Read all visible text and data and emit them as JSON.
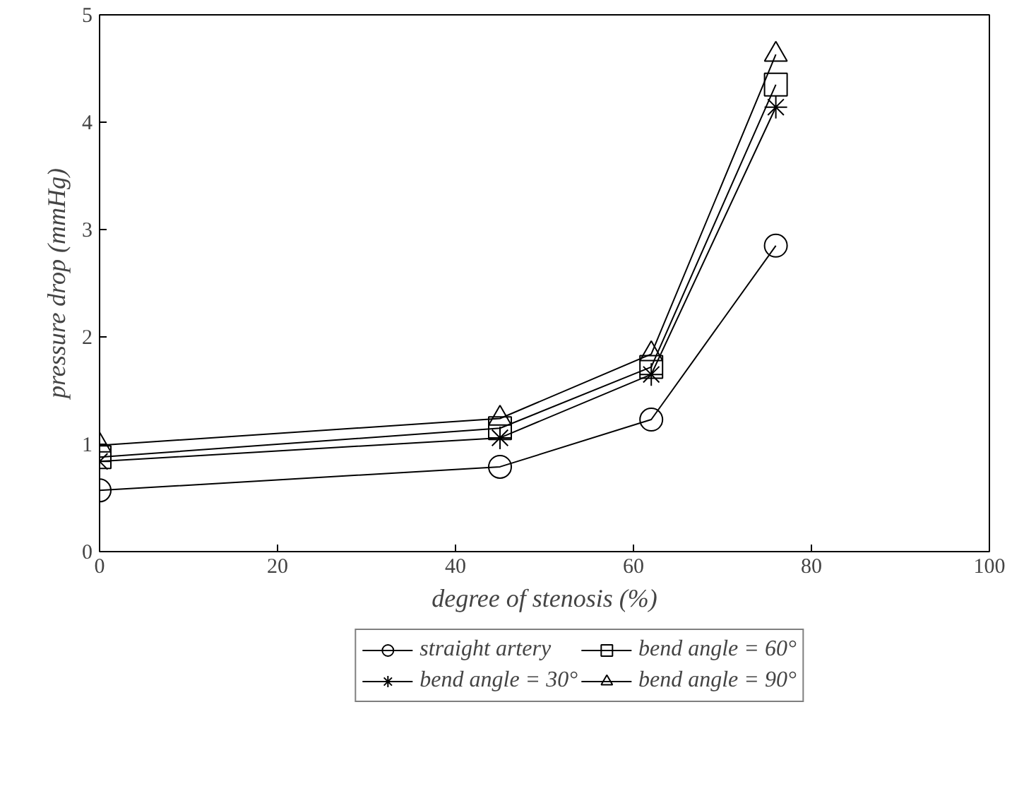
{
  "chart_data": {
    "type": "line",
    "xlabel": "degree of stenosis (%)",
    "ylabel": "pressure drop (mmHg)",
    "x": [
      0,
      45,
      62,
      76
    ],
    "xlim": [
      0,
      100
    ],
    "xticks": [
      0,
      20,
      40,
      60,
      80,
      100
    ],
    "ylim": [
      0,
      5
    ],
    "yticks": [
      0,
      1,
      2,
      3,
      4,
      5
    ],
    "grid": false,
    "legend": "bottom",
    "line_style": "solid",
    "series": [
      {
        "name": "straight artery",
        "color": "#000000",
        "marker": "circle",
        "values": [
          0.57,
          0.79,
          1.23,
          2.85
        ]
      },
      {
        "name": "bend angle = 30°",
        "color": "#000000",
        "marker": "cross",
        "values": [
          0.84,
          1.06,
          1.65,
          4.14
        ]
      },
      {
        "name": "bend angle = 60°",
        "color": "#000000",
        "marker": "square",
        "values": [
          0.88,
          1.15,
          1.72,
          4.35
        ]
      },
      {
        "name": "bend angle = 90°",
        "color": "#000000",
        "marker": "triangle",
        "values": [
          0.99,
          1.24,
          1.84,
          4.63
        ]
      }
    ]
  }
}
